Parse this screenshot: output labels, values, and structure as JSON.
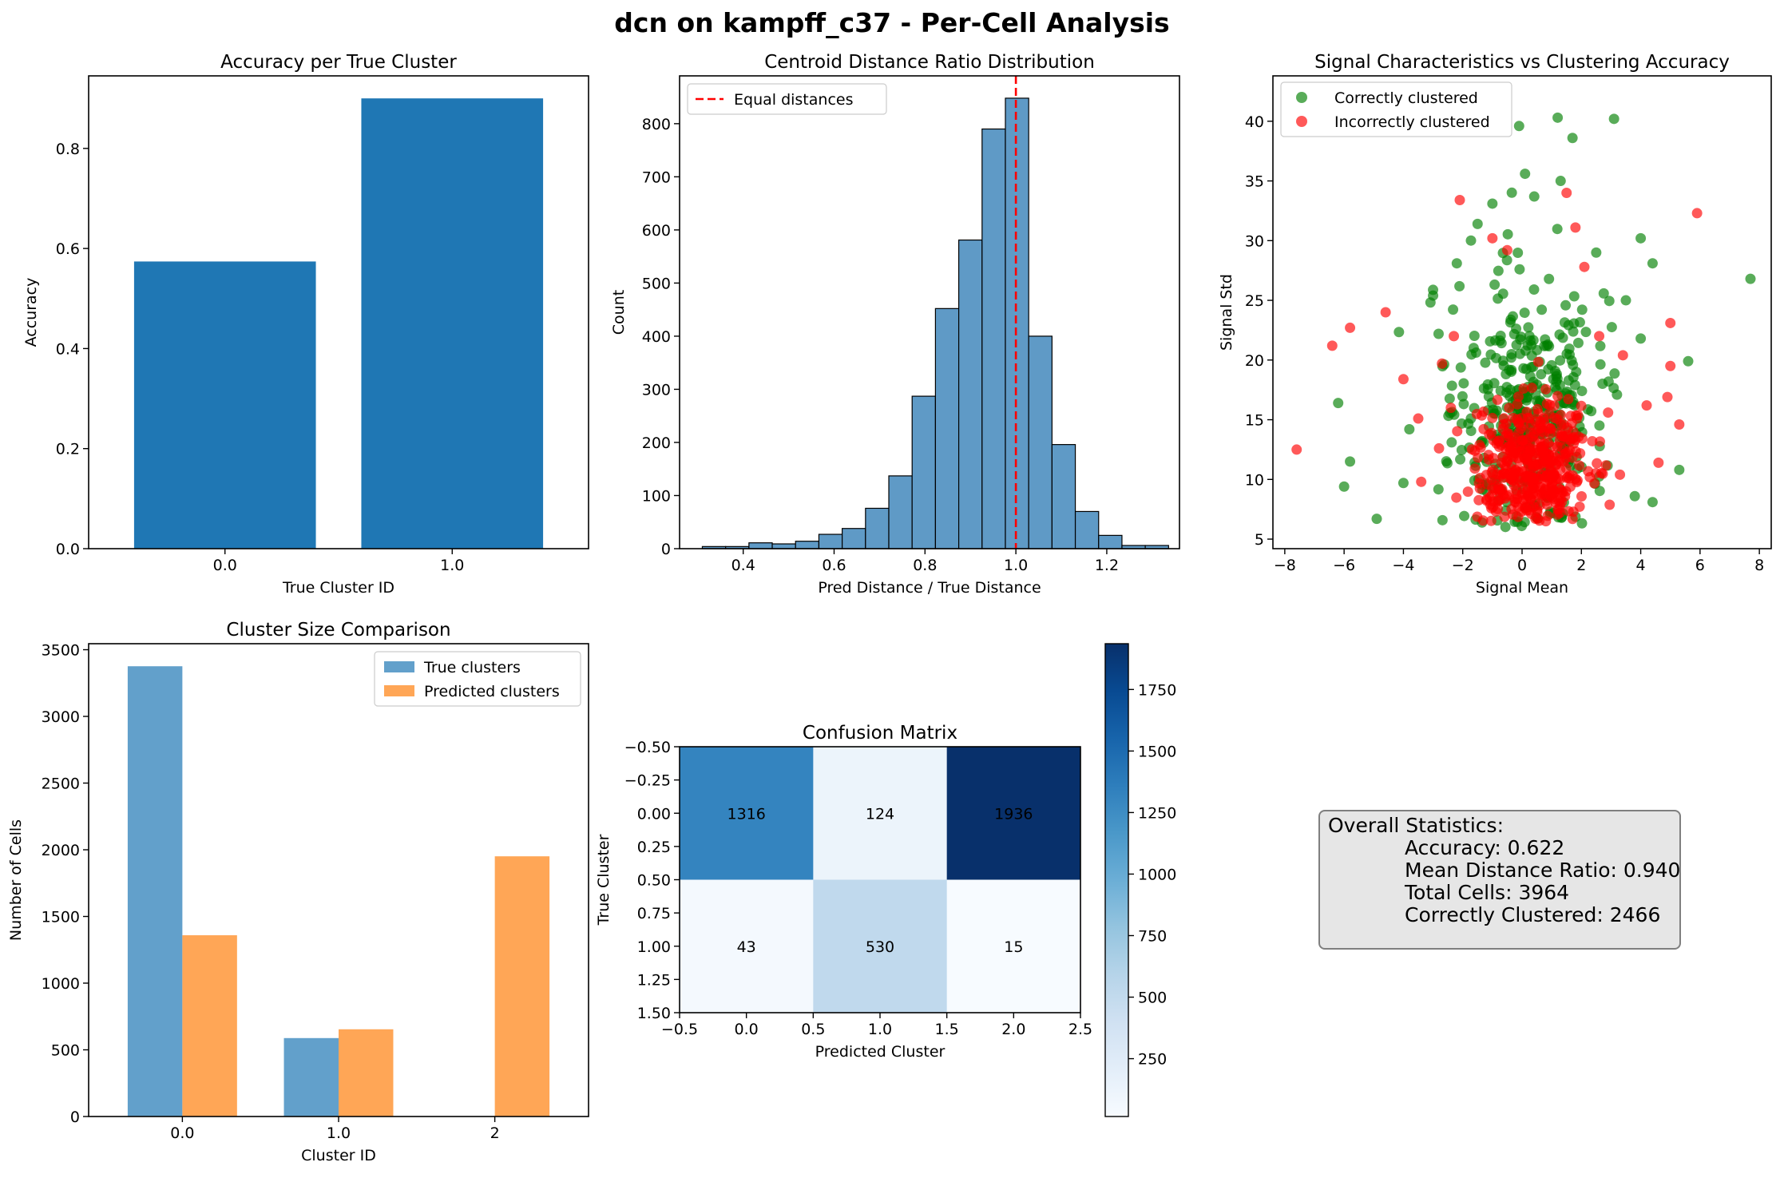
{
  "figure": {
    "suptitle": "dcn on kampff_c37 - Per-Cell Analysis"
  },
  "chart_data": [
    {
      "type": "bar",
      "title": "Accuracy per True Cluster",
      "xlabel": "True Cluster ID",
      "ylabel": "Accuracy",
      "categories": [
        "0.0",
        "1.0"
      ],
      "values": [
        0.574,
        0.9
      ],
      "ylim": [
        0,
        0.945
      ],
      "yticks": [
        "0.0",
        "0.2",
        "0.4",
        "0.6",
        "0.8"
      ],
      "color": "#1f77b4"
    },
    {
      "type": "bar",
      "title": "Centroid Distance Ratio Distribution",
      "xlabel": "Pred Distance / True Distance",
      "ylabel": "Count",
      "bin_start": 0.31,
      "bin_width": 0.0513,
      "values": [
        4,
        4,
        11,
        9,
        14,
        27,
        38,
        76,
        137,
        287,
        452,
        581,
        790,
        848,
        400,
        196,
        70,
        25,
        6,
        6
      ],
      "xlim": [
        0.26,
        1.36
      ],
      "ylim": [
        0,
        890
      ],
      "xticks": [
        "0.4",
        "0.6",
        "0.8",
        "1.0",
        "1.2"
      ],
      "yticks": [
        "0",
        "100",
        "200",
        "300",
        "400",
        "500",
        "600",
        "700",
        "800"
      ],
      "reference_line": {
        "x": 1.0,
        "label": "Equal distances",
        "color": "#ff0000"
      },
      "legend": [
        "Equal distances"
      ],
      "legend_position": "upper-left",
      "color": "#5f9ac6"
    },
    {
      "type": "scatter",
      "title": "Signal Characteristics vs Clustering Accuracy",
      "xlabel": "Signal Mean",
      "ylabel": "Signal Std",
      "xlim": [
        -8.4,
        8.4
      ],
      "ylim": [
        4.2,
        43.8
      ],
      "xticks": [
        "−8",
        "−6",
        "−4",
        "−2",
        "0",
        "2",
        "4",
        "6",
        "8"
      ],
      "yticks": [
        "5",
        "10",
        "15",
        "20",
        "25",
        "30",
        "35",
        "40"
      ],
      "legend_position": "upper-left",
      "series": [
        {
          "name": "Correctly clustered",
          "color": "#008000",
          "count": 2466,
          "points": [
            [
              7.7,
              26.8
            ],
            [
              3.1,
              40.2
            ],
            [
              1.2,
              40.3
            ],
            [
              1.7,
              38.6
            ],
            [
              -0.1,
              39.6
            ],
            [
              0.1,
              35.6
            ],
            [
              1.3,
              35.0
            ],
            [
              -1.0,
              33.1
            ],
            [
              -6.2,
              16.4
            ],
            [
              -5.8,
              11.5
            ],
            [
              -6.0,
              9.4
            ],
            [
              -4.0,
              9.7
            ],
            [
              -3.8,
              14.2
            ],
            [
              4.4,
              28.1
            ],
            [
              5.6,
              19.9
            ],
            [
              5.3,
              10.8
            ],
            [
              4.4,
              8.1
            ],
            [
              3.8,
              8.6
            ],
            [
              -4.9,
              6.7
            ],
            [
              4.0,
              30.2
            ],
            [
              3.5,
              25.0
            ],
            [
              -3.0,
              25.4
            ],
            [
              -2.2,
              28.1
            ],
            [
              2.5,
              29.0
            ],
            [
              -1.5,
              31.4
            ],
            [
              3.2,
              17.1
            ],
            [
              4.0,
              21.8
            ]
          ]
        },
        {
          "name": "Incorrectly clustered",
          "color": "#ff0000",
          "count": 1498,
          "points": [
            [
              -7.6,
              12.5
            ],
            [
              -6.4,
              21.2
            ],
            [
              -5.8,
              22.7
            ],
            [
              -4.6,
              24.0
            ],
            [
              -4.0,
              18.4
            ],
            [
              -3.5,
              15.1
            ],
            [
              -2.7,
              19.7
            ],
            [
              -2.3,
              22.0
            ],
            [
              5.9,
              32.3
            ],
            [
              5.0,
              23.1
            ],
            [
              5.3,
              14.6
            ],
            [
              4.6,
              11.4
            ],
            [
              4.2,
              16.2
            ],
            [
              -1.0,
              30.2
            ],
            [
              1.8,
              31.1
            ],
            [
              -2.1,
              33.4
            ],
            [
              1.5,
              34.0
            ],
            [
              2.1,
              27.8
            ],
            [
              -0.5,
              29.2
            ],
            [
              -2.8,
              12.6
            ],
            [
              2.9,
              15.6
            ],
            [
              3.4,
              20.4
            ],
            [
              4.9,
              16.9
            ],
            [
              5.0,
              19.5
            ],
            [
              -2.4,
              16.0
            ],
            [
              2.6,
              22.0
            ],
            [
              -3.4,
              9.8
            ],
            [
              3.3,
              10.4
            ]
          ]
        }
      ]
    },
    {
      "type": "bar",
      "title": "Cluster Size Comparison",
      "xlabel": "Cluster ID",
      "ylabel": "Number of Cells",
      "categories": [
        "0.0",
        "1.0",
        "2"
      ],
      "series": [
        {
          "name": "True clusters",
          "values": [
            3376,
            588,
            0
          ],
          "color": "#62a0cb"
        },
        {
          "name": "Predicted clusters",
          "values": [
            1359,
            654,
            1951
          ],
          "color": "#ffa656"
        }
      ],
      "ylim": [
        0,
        3545
      ],
      "yticks": [
        "0",
        "500",
        "1000",
        "1500",
        "2000",
        "2500",
        "3000",
        "3500"
      ],
      "legend_position": "upper-right"
    },
    {
      "type": "heatmap",
      "title": "Confusion Matrix",
      "xlabel": "Predicted Cluster",
      "ylabel": "True Cluster",
      "matrix": [
        [
          1316,
          124,
          1936
        ],
        [
          43,
          530,
          15
        ]
      ],
      "cell_labels": [
        [
          "1316",
          "124",
          "1936"
        ],
        [
          "43",
          "530",
          "15"
        ]
      ],
      "xticks": [
        "−0.5",
        "0.0",
        "0.5",
        "1.0",
        "1.5",
        "2.0",
        "2.5"
      ],
      "yticks": [
        "−0.50",
        "−0.25",
        "0.00",
        "0.25",
        "0.50",
        "0.75",
        "1.00",
        "1.25",
        "1.50"
      ],
      "colorbar_ticks": [
        "250",
        "500",
        "750",
        "1000",
        "1250",
        "1500",
        "1750"
      ],
      "colormap": "Blues",
      "vmin": 15,
      "vmax": 1936
    }
  ],
  "stats_box": {
    "heading": "Overall Statistics:",
    "lines": [
      "Accuracy: 0.622",
      "Mean Distance Ratio: 0.940",
      "Total Cells: 3964",
      "Correctly Clustered: 2466"
    ]
  }
}
